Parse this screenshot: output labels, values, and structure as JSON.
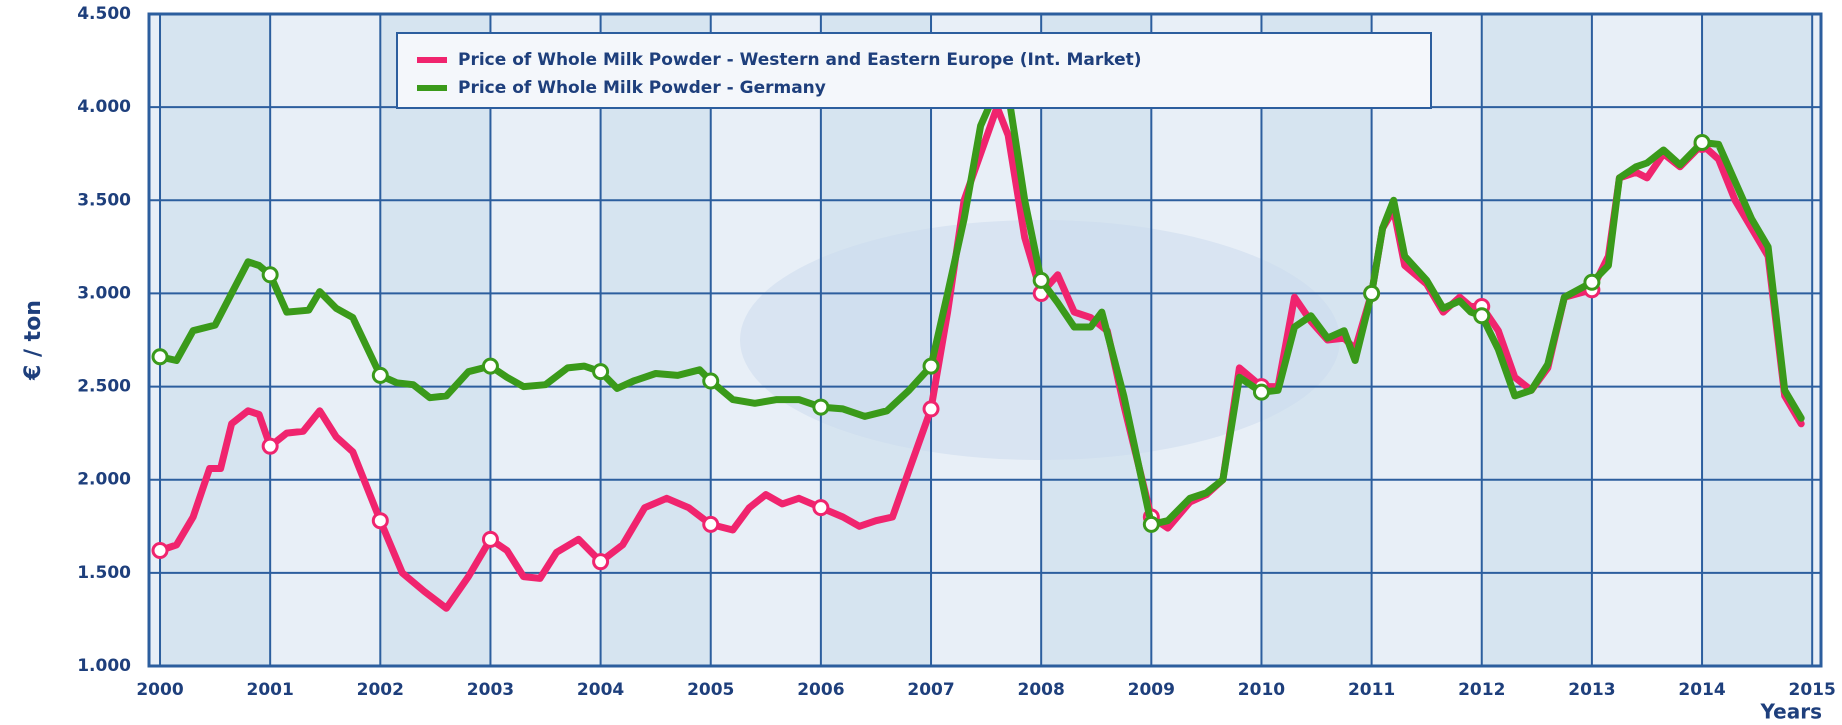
{
  "chart_data": {
    "type": "line",
    "ylabel": "€ / ton",
    "xlabel": "Years",
    "xlim": [
      1999.9,
      2015.08
    ],
    "ylim": [
      1000,
      4500
    ],
    "xticks": [
      2000,
      2001,
      2002,
      2003,
      2004,
      2005,
      2006,
      2007,
      2008,
      2009,
      2010,
      2011,
      2012,
      2013,
      2014,
      2015
    ],
    "yticks": [
      {
        "value": 1000,
        "label": "1.000"
      },
      {
        "value": 1500,
        "label": "1.500"
      },
      {
        "value": 2000,
        "label": "2.000"
      },
      {
        "value": 2500,
        "label": "2.500"
      },
      {
        "value": 3000,
        "label": "3.000"
      },
      {
        "value": 3500,
        "label": "3.500"
      },
      {
        "value": 4000,
        "label": "4.000"
      },
      {
        "value": 4500,
        "label": "4.500"
      }
    ],
    "grid": true,
    "legend": "top",
    "series": [
      {
        "name": "Price of Whole Milk Powder - Western and Eastern Europe (Int. Market)",
        "color": "#f0246e",
        "x": [
          2000.0,
          2000.15,
          2000.3,
          2000.45,
          2000.55,
          2000.65,
          2000.8,
          2000.9,
          2001.0,
          2001.15,
          2001.3,
          2001.45,
          2001.6,
          2001.75,
          2002.0,
          2002.2,
          2002.4,
          2002.6,
          2002.8,
          2003.0,
          2003.15,
          2003.3,
          2003.45,
          2003.6,
          2003.8,
          2004.0,
          2004.2,
          2004.4,
          2004.6,
          2004.8,
          2005.0,
          2005.2,
          2005.35,
          2005.5,
          2005.65,
          2005.8,
          2006.0,
          2006.2,
          2006.35,
          2006.5,
          2006.65,
          2006.8,
          2007.0,
          2007.15,
          2007.3,
          2007.45,
          2007.6,
          2007.7,
          2007.85,
          2008.0,
          2008.15,
          2008.3,
          2008.45,
          2008.6,
          2008.75,
          2009.0,
          2009.15,
          2009.35,
          2009.5,
          2009.65,
          2009.8,
          2010.0,
          2010.15,
          2010.3,
          2010.45,
          2010.6,
          2010.75,
          2010.85,
          2011.0,
          2011.1,
          2011.2,
          2011.3,
          2011.5,
          2011.65,
          2011.8,
          2011.9,
          2012.0,
          2012.15,
          2012.3,
          2012.45,
          2012.6,
          2012.75,
          2013.0,
          2013.15,
          2013.25,
          2013.4,
          2013.5,
          2013.65,
          2013.8,
          2014.0,
          2014.15,
          2014.3,
          2014.45,
          2014.6,
          2014.75,
          2014.9
        ],
        "values": [
          1620,
          1650,
          1800,
          2060,
          2060,
          2300,
          2370,
          2350,
          2180,
          2250,
          2260,
          2370,
          2230,
          2150,
          1780,
          1500,
          1400,
          1310,
          1480,
          1680,
          1620,
          1480,
          1470,
          1610,
          1680,
          1560,
          1650,
          1850,
          1900,
          1850,
          1760,
          1730,
          1850,
          1920,
          1870,
          1900,
          1850,
          1800,
          1750,
          1780,
          1800,
          2050,
          2380,
          2900,
          3500,
          3750,
          4000,
          3850,
          3300,
          3000,
          3100,
          2900,
          2870,
          2800,
          2400,
          1800,
          1740,
          1880,
          1920,
          2000,
          2600,
          2500,
          2500,
          2980,
          2850,
          2750,
          2760,
          2700,
          3000,
          3350,
          3450,
          3150,
          3050,
          2900,
          2980,
          2930,
          2930,
          2800,
          2550,
          2480,
          2600,
          2980,
          3020,
          3200,
          3620,
          3650,
          3620,
          3750,
          3680,
          3800,
          3720,
          3500,
          3350,
          3200,
          2450,
          2300
        ]
      },
      {
        "name": "Price of Whole Milk Powder - Germany",
        "color": "#3a9a1a",
        "x": [
          2000.0,
          2000.15,
          2000.3,
          2000.5,
          2000.65,
          2000.8,
          2000.9,
          2001.0,
          2001.15,
          2001.35,
          2001.45,
          2001.6,
          2001.75,
          2002.0,
          2002.15,
          2002.3,
          2002.45,
          2002.6,
          2002.8,
          2003.0,
          2003.15,
          2003.3,
          2003.5,
          2003.7,
          2003.85,
          2004.0,
          2004.15,
          2004.3,
          2004.5,
          2004.7,
          2004.9,
          2005.0,
          2005.2,
          2005.4,
          2005.6,
          2005.8,
          2006.0,
          2006.2,
          2006.4,
          2006.6,
          2006.8,
          2007.0,
          2007.15,
          2007.3,
          2007.45,
          2007.6,
          2007.7,
          2007.85,
          2008.0,
          2008.15,
          2008.3,
          2008.45,
          2008.55,
          2008.75,
          2009.0,
          2009.15,
          2009.35,
          2009.5,
          2009.65,
          2009.8,
          2010.0,
          2010.15,
          2010.3,
          2010.45,
          2010.6,
          2010.75,
          2010.85,
          2011.0,
          2011.1,
          2011.2,
          2011.3,
          2011.5,
          2011.65,
          2011.8,
          2011.9,
          2012.0,
          2012.15,
          2012.3,
          2012.45,
          2012.6,
          2012.75,
          2013.0,
          2013.15,
          2013.25,
          2013.4,
          2013.5,
          2013.65,
          2013.8,
          2014.0,
          2014.15,
          2014.3,
          2014.45,
          2014.6,
          2014.75,
          2014.9
        ],
        "values": [
          2660,
          2640,
          2800,
          2830,
          3000,
          3170,
          3150,
          3100,
          2900,
          2910,
          3010,
          2920,
          2870,
          2560,
          2520,
          2510,
          2440,
          2450,
          2580,
          2610,
          2550,
          2500,
          2510,
          2600,
          2610,
          2580,
          2490,
          2530,
          2570,
          2560,
          2590,
          2530,
          2430,
          2410,
          2430,
          2430,
          2390,
          2380,
          2340,
          2370,
          2480,
          2610,
          3000,
          3400,
          3900,
          4100,
          4080,
          3500,
          3070,
          2950,
          2820,
          2820,
          2900,
          2450,
          1760,
          1780,
          1900,
          1930,
          2000,
          2550,
          2470,
          2480,
          2820,
          2880,
          2760,
          2800,
          2640,
          3000,
          3350,
          3500,
          3200,
          3070,
          2920,
          2960,
          2900,
          2880,
          2700,
          2450,
          2480,
          2620,
          2980,
          3060,
          3150,
          3620,
          3680,
          3700,
          3770,
          3690,
          3810,
          3800,
          3600,
          3400,
          3250,
          2480,
          2330
        ]
      }
    ]
  }
}
